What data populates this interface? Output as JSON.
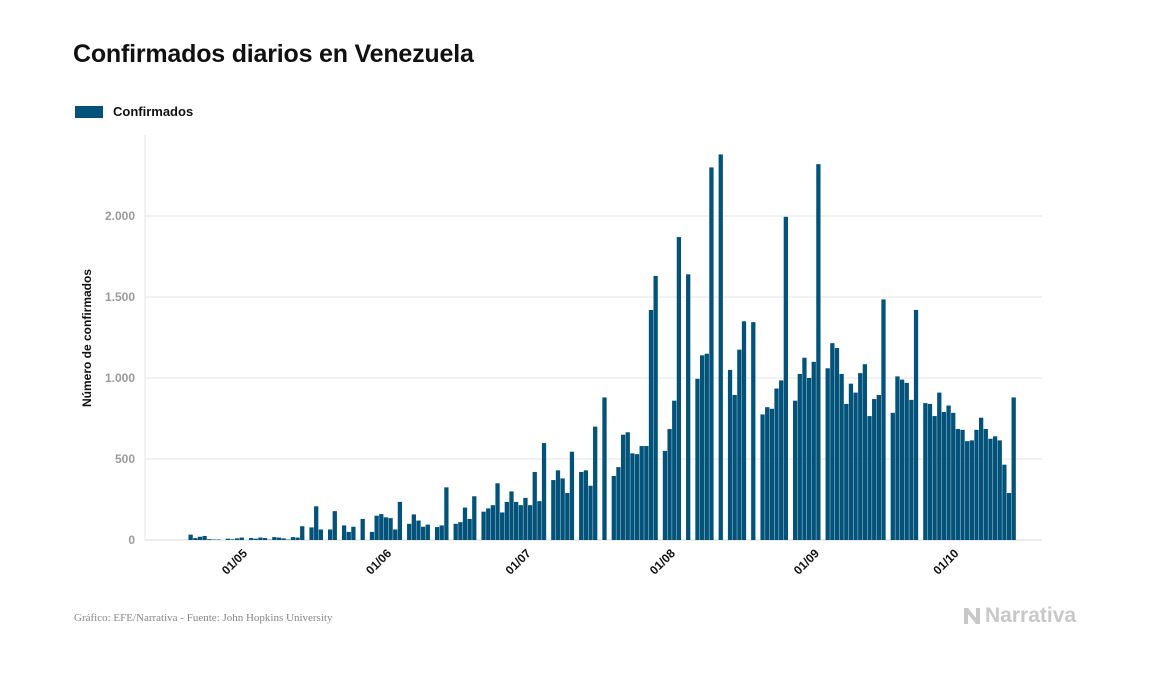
{
  "header": {
    "title": "Confirmados diarios en Venezuela"
  },
  "footer": {
    "source": "Gráfico: EFE/Narrativa - Fuente: John Hopkins University",
    "brand": "Narrativa"
  },
  "colors": {
    "bar": "#03527a",
    "grid": "#e6e6e6",
    "tick": "#9a9a9a",
    "text": "#111111"
  },
  "chart_data": {
    "type": "bar",
    "title": "Confirmados diarios en Venezuela",
    "ylabel": "Número de confirmados",
    "xlabel": "",
    "ylim": [
      0,
      2500
    ],
    "yticks": [
      0,
      500,
      1000,
      1500,
      2000
    ],
    "ytick_labels": [
      "0",
      "500",
      "1.000",
      "1.500",
      "2.000"
    ],
    "xtick_labels": [
      "01/05",
      "01/06",
      "01/07",
      "01/08",
      "01/09",
      "01/10"
    ],
    "xtick_dates": [
      "2020-05-01",
      "2020-06-01",
      "2020-07-01",
      "2020-08-01",
      "2020-09-01",
      "2020-10-01"
    ],
    "grid": true,
    "legend_position": "top-left",
    "series": [
      {
        "name": "Confirmados",
        "start_date": "2020-04-20",
        "values": [
          33,
          12,
          20,
          25,
          5,
          3,
          3,
          0,
          8,
          4,
          10,
          15,
          0,
          12,
          8,
          15,
          12,
          2,
          18,
          15,
          10,
          3,
          18,
          15,
          85,
          0,
          78,
          208,
          65,
          0,
          65,
          178,
          0,
          90,
          50,
          82,
          0,
          130,
          0,
          50,
          150,
          160,
          140,
          135,
          65,
          235,
          0,
          100,
          158,
          120,
          82,
          95,
          0,
          80,
          90,
          325,
          0,
          100,
          110,
          200,
          130,
          270,
          0,
          175,
          195,
          215,
          350,
          170,
          235,
          300,
          235,
          215,
          260,
          215,
          420,
          240,
          598,
          0,
          370,
          430,
          380,
          290,
          545,
          0,
          420,
          430,
          335,
          700,
          0,
          880,
          0,
          395,
          450,
          650,
          665,
          535,
          530,
          580,
          580,
          1420,
          1630,
          0,
          550,
          685,
          860,
          1870,
          0,
          1640,
          0,
          995,
          1140,
          1150,
          2300,
          0,
          2380,
          0,
          1050,
          895,
          1175,
          1350,
          0,
          1345,
          0,
          775,
          820,
          810,
          935,
          985,
          1995,
          0,
          860,
          1025,
          1125,
          1000,
          1100,
          2320,
          0,
          1060,
          1215,
          1185,
          1025,
          840,
          965,
          910,
          1030,
          1085,
          765,
          870,
          895,
          1485,
          0,
          785,
          1010,
          990,
          970,
          865,
          1420,
          0,
          845,
          840,
          765,
          910,
          790,
          830,
          785,
          685,
          680,
          610,
          615,
          680,
          755,
          685,
          625,
          640,
          615,
          465,
          290,
          880
        ]
      }
    ]
  }
}
